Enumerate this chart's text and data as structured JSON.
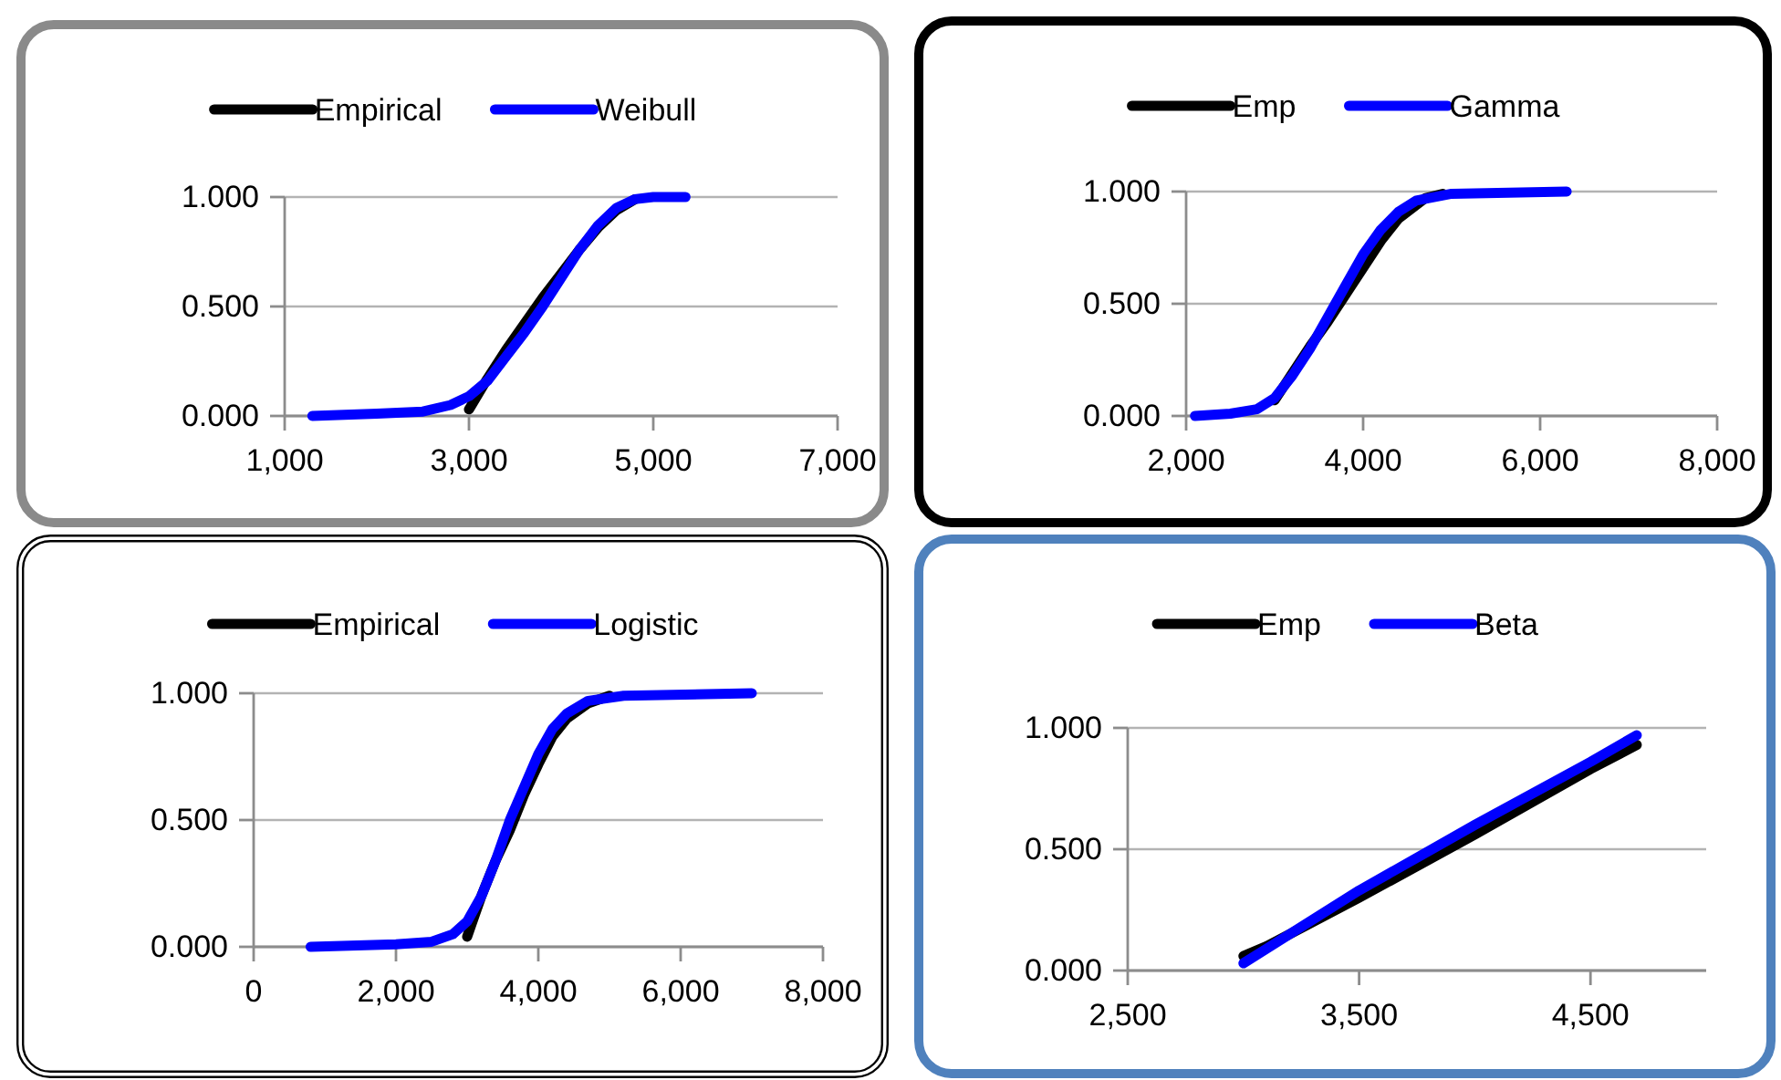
{
  "chart_data": [
    {
      "type": "line",
      "legend": "top",
      "grid": "y",
      "xlim": [
        1000,
        7000
      ],
      "xticks": [
        {
          "value": 1000,
          "label": "1,000"
        },
        {
          "value": 3000,
          "label": "3,000"
        },
        {
          "value": 5000,
          "label": "5,000"
        },
        {
          "value": 7000,
          "label": "7,000"
        }
      ],
      "ylim": [
        0,
        1
      ],
      "yticks": [
        {
          "value": 0,
          "label": "0.000"
        },
        {
          "value": 0.5,
          "label": "0.500"
        },
        {
          "value": 1,
          "label": "1.000"
        }
      ],
      "series": [
        {
          "name": "Empirical",
          "color": "#000000",
          "x": [
            3000,
            3200,
            3400,
            3600,
            3800,
            4000,
            4200,
            4400,
            4600,
            4800
          ],
          "values": [
            0.03,
            0.17,
            0.3,
            0.42,
            0.54,
            0.65,
            0.76,
            0.86,
            0.94,
            0.99
          ]
        },
        {
          "name": "Weibull",
          "color": "#0000ff",
          "x": [
            1300,
            2000,
            2500,
            2800,
            3000,
            3200,
            3400,
            3600,
            3800,
            4000,
            4200,
            4400,
            4600,
            4800,
            5000,
            5350
          ],
          "values": [
            0,
            0.01,
            0.02,
            0.05,
            0.09,
            0.16,
            0.27,
            0.38,
            0.5,
            0.63,
            0.76,
            0.87,
            0.95,
            0.99,
            1,
            1
          ]
        }
      ]
    },
    {
      "type": "line",
      "legend": "top",
      "grid": "y",
      "xlim": [
        2000,
        8000
      ],
      "xticks": [
        {
          "value": 2000,
          "label": "2,000"
        },
        {
          "value": 4000,
          "label": "4,000"
        },
        {
          "value": 6000,
          "label": "6,000"
        },
        {
          "value": 8000,
          "label": "8,000"
        }
      ],
      "ylim": [
        0,
        1
      ],
      "yticks": [
        {
          "value": 0,
          "label": "0.000"
        },
        {
          "value": 0.5,
          "label": "0.500"
        },
        {
          "value": 1,
          "label": "1.000"
        }
      ],
      "series": [
        {
          "name": "Emp",
          "color": "#000000",
          "x": [
            3000,
            3200,
            3400,
            3600,
            3800,
            4000,
            4200,
            4400,
            4700,
            4900
          ],
          "values": [
            0.07,
            0.19,
            0.31,
            0.42,
            0.54,
            0.66,
            0.78,
            0.88,
            0.97,
            0.99
          ]
        },
        {
          "name": "Gamma",
          "color": "#0000ff",
          "x": [
            2100,
            2500,
            2800,
            3000,
            3200,
            3400,
            3600,
            3800,
            4000,
            4200,
            4400,
            4600,
            5000,
            6300
          ],
          "values": [
            0,
            0.01,
            0.03,
            0.08,
            0.18,
            0.3,
            0.44,
            0.58,
            0.72,
            0.83,
            0.91,
            0.96,
            0.99,
            1
          ]
        }
      ]
    },
    {
      "type": "line",
      "legend": "top",
      "grid": "y",
      "xlim": [
        0,
        8000
      ],
      "xticks": [
        0,
        {
          "value": 2000,
          "label": "2,000"
        },
        {
          "value": 4000,
          "label": "4,000"
        },
        {
          "value": 6000,
          "label": "6,000"
        },
        {
          "value": 8000,
          "label": "8,000"
        }
      ],
      "ylim": [
        0,
        1
      ],
      "yticks": [
        {
          "value": 0,
          "label": "0.000"
        },
        {
          "value": 0.5,
          "label": "0.500"
        },
        {
          "value": 1,
          "label": "1.000"
        }
      ],
      "series": [
        {
          "name": "Empirical",
          "color": "#000000",
          "x": [
            3000,
            3200,
            3400,
            3600,
            3800,
            4000,
            4200,
            4400,
            4700,
            5000
          ],
          "values": [
            0.04,
            0.2,
            0.34,
            0.46,
            0.6,
            0.72,
            0.83,
            0.9,
            0.96,
            0.99
          ]
        },
        {
          "name": "Logistic",
          "color": "#0000ff",
          "x": [
            800,
            2000,
            2500,
            2800,
            3000,
            3200,
            3400,
            3600,
            3800,
            4000,
            4200,
            4400,
            4700,
            5200,
            7000
          ],
          "values": [
            0,
            0.01,
            0.02,
            0.05,
            0.1,
            0.2,
            0.34,
            0.5,
            0.63,
            0.76,
            0.86,
            0.92,
            0.97,
            0.99,
            1
          ]
        }
      ]
    },
    {
      "type": "line",
      "legend": "top",
      "grid": "y",
      "xlim": [
        2500,
        5000
      ],
      "xticks": [
        {
          "value": 2500,
          "label": "2,500"
        },
        {
          "value": 3500,
          "label": "3,500"
        },
        {
          "value": 4500,
          "label": "4,500"
        }
      ],
      "ylim": [
        0,
        1
      ],
      "yticks": [
        {
          "value": 0,
          "label": "0.000"
        },
        {
          "value": 0.5,
          "label": "0.500"
        },
        {
          "value": 1,
          "label": "1.000"
        }
      ],
      "series": [
        {
          "name": "Emp",
          "color": "#000000",
          "x": [
            3000,
            3100,
            3500,
            4000,
            4500,
            4700
          ],
          "values": [
            0.06,
            0.1,
            0.3,
            0.56,
            0.83,
            0.93
          ]
        },
        {
          "name": "Beta",
          "color": "#0000ff",
          "x": [
            3000,
            3100,
            3500,
            4000,
            4500,
            4700
          ],
          "values": [
            0.03,
            0.09,
            0.33,
            0.6,
            0.86,
            0.97
          ]
        }
      ]
    }
  ]
}
